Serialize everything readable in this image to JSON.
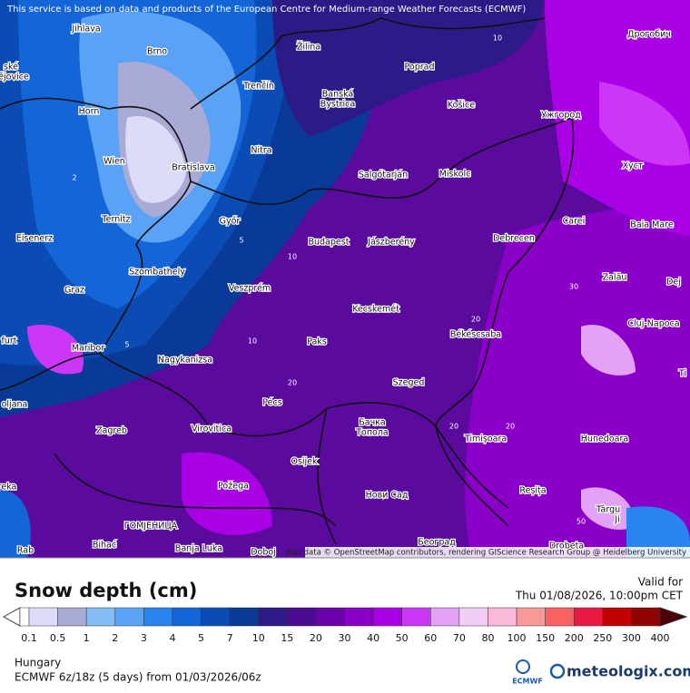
{
  "banner": "This service is based on data and products of the European Centre for Medium-range Weather Forecasts (ECMWF)",
  "attribution": "Map data © OpenStreetMap contributors, rendering GIScience Research Group @ Heidelberg University",
  "cities": [
    "Jihlava",
    "Brno",
    "Žilina",
    "Poprad",
    "Дрогобич",
    "ské",
    "ějovice",
    "Trenčín",
    "Banská",
    "Bystrica",
    "Košice",
    "Ужгород",
    "Horn",
    "Nitra",
    "Хуст",
    "Wien",
    "Bratislava",
    "Salgótarján",
    "Miskolc",
    "Ternitz",
    "Győr",
    "Carei",
    "Baia Mare",
    "Eisenerz",
    "Budapest",
    "Jászberény",
    "Debrecen",
    "Szombathely",
    "Zalău",
    "Graz",
    "Veszprém",
    "Dej",
    "Kecskemét",
    "Cluj-Napoca",
    "furt",
    "Maribor",
    "Paks",
    "Békéscsaba",
    "Nagykanizsa",
    "Ti",
    "Szeged",
    "oljana",
    "Pécs",
    "Бачка",
    "Топола",
    "Zagreb",
    "Virovitica",
    "Timișoara",
    "Hunedoara",
    "Osijek",
    "reka",
    "Požega",
    "Нови Сад",
    "Reșița",
    "Târgu",
    "Ji",
    "ГОМЈЕНИЦА",
    "Bihać",
    "Banja Luka",
    "Doboj",
    "Београд",
    "Drobeta",
    "Rab"
  ],
  "contour_labels": [
    "10",
    "2",
    "5",
    "5",
    "10",
    "10",
    "20",
    "20",
    "20",
    "20",
    "30",
    "50"
  ],
  "legend": {
    "title": "Snow depth (cm)",
    "ticks": [
      "0.1",
      "0.5",
      "1",
      "2",
      "3",
      "4",
      "5",
      "7",
      "10",
      "15",
      "20",
      "30",
      "40",
      "50",
      "60",
      "70",
      "80",
      "100",
      "150",
      "200",
      "250",
      "300",
      "400"
    ],
    "colors": [
      "#dcdcf8",
      "#aaaad6",
      "#86bcf6",
      "#5aa2f6",
      "#2a84f0",
      "#1466d8",
      "#0a4cb4",
      "#0a3a98",
      "#2c1a86",
      "#4a0a92",
      "#6a02aa",
      "#8a00c8",
      "#aa00e6",
      "#cc36f6",
      "#e2a2f6",
      "#f2cef6",
      "#f8bad8",
      "#f89a9a",
      "#f86262",
      "#e81a42",
      "#c00202",
      "#900404"
    ]
  },
  "valid_label": "Valid for",
  "valid_time": "Thu 01/08/2026, 10:00pm CET",
  "region": "Hungary",
  "model": "ECMWF 6z/18z (5 days)  from  01/03/2026/06z",
  "logo_ecmwf": "ECMWF",
  "logo_site": "meteologix.com"
}
